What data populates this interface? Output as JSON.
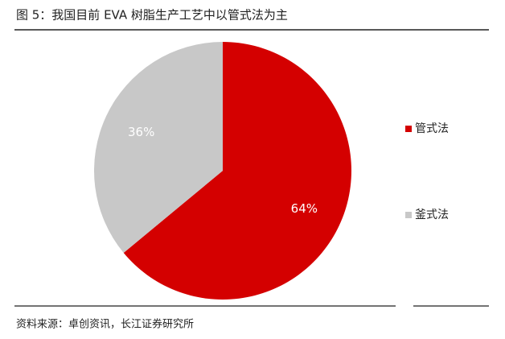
{
  "chart_data": {
    "type": "pie",
    "title": "图 5：我国目前 EVA 树脂生产工艺中以管式法为主",
    "source": "资料来源：卓创资讯，长江证券研究所",
    "categories": [
      "管式法",
      "釜式法"
    ],
    "values": [
      64,
      36
    ],
    "value_labels": [
      "64%",
      "36%"
    ],
    "colors": [
      "#d40000",
      "#c8c8c8"
    ]
  }
}
